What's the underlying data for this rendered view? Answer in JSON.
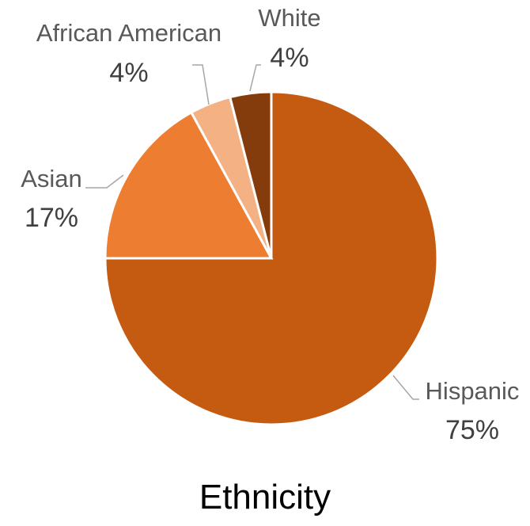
{
  "chart_data": {
    "type": "pie",
    "title": "Ethnicity",
    "categories": [
      "Hispanic",
      "Asian",
      "African American",
      "White"
    ],
    "values": [
      75,
      17,
      4,
      4
    ],
    "value_labels": [
      "75%",
      "17%",
      "4%",
      "4%"
    ],
    "colors": [
      "#C55A11",
      "#ED7D31",
      "#F4B183",
      "#843C0C"
    ],
    "start": "12 o'clock",
    "direction": "clockwise",
    "legend": "none",
    "data_labels": "outside with leader lines"
  }
}
